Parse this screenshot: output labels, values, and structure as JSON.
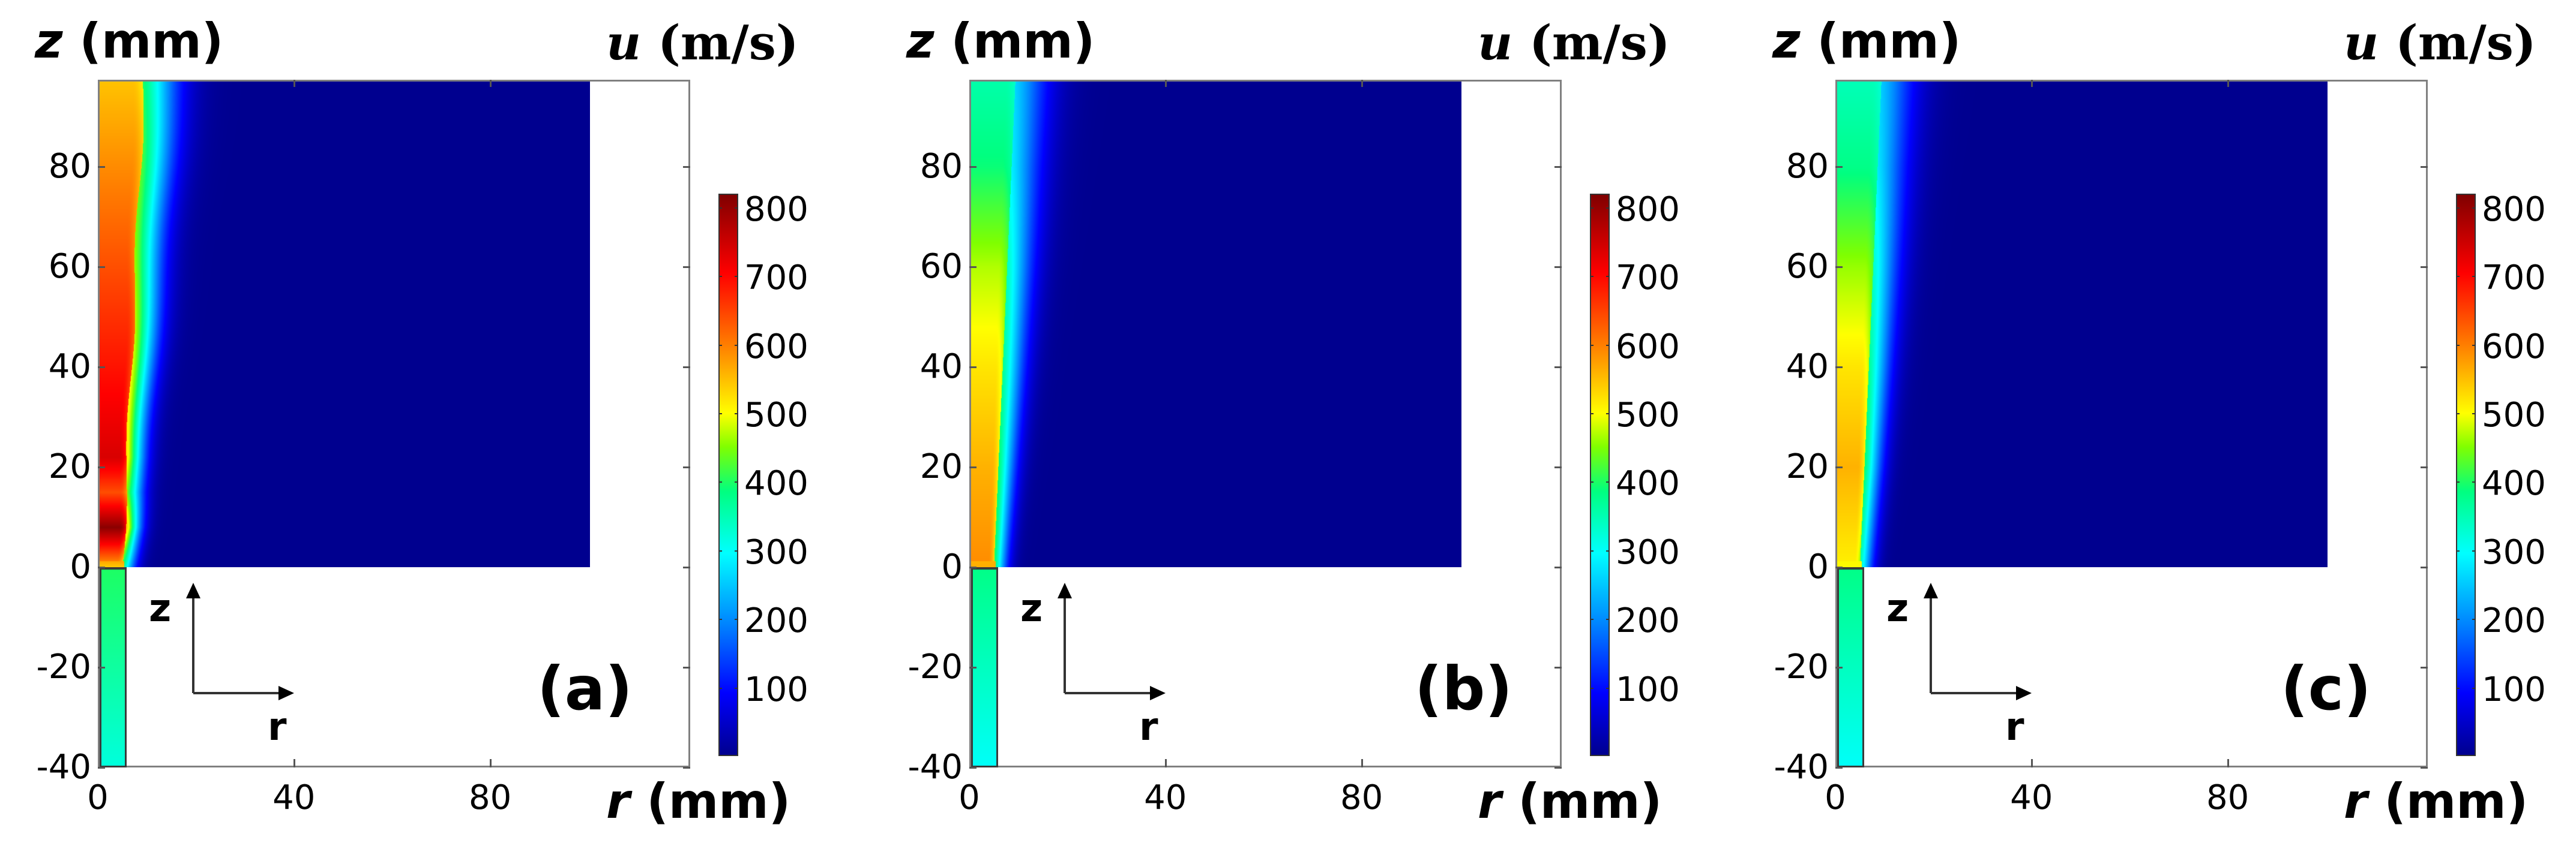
{
  "figure": {
    "panels": [
      {
        "id": "a",
        "tag": "(a)"
      },
      {
        "id": "b",
        "tag": "(b)"
      },
      {
        "id": "c",
        "tag": "(c)"
      }
    ],
    "labels": {
      "z_axis_var": "z",
      "z_axis_unit": "(mm)",
      "r_axis_var": "r",
      "r_axis_unit": "(mm)",
      "u_var": "u",
      "u_unit": "(m/s)",
      "coord_z": "z",
      "coord_r": "r"
    },
    "y_ticks": [
      "80",
      "60",
      "40",
      "20",
      "0",
      "-20",
      "-40"
    ],
    "x_ticks": [
      "0",
      "40",
      "80"
    ],
    "colorbar_ticks": [
      "800",
      "700",
      "600",
      "500",
      "400",
      "300",
      "200",
      "100"
    ]
  },
  "colors": {
    "background": "#ffffff",
    "ambient_flow": "#00008b",
    "axis_frame": "#808080",
    "colormap": "jet"
  },
  "chart_data": [
    {
      "type": "heatmap",
      "panel": "(a)",
      "title": "",
      "xlabel": "r (mm)",
      "ylabel": "z (mm)",
      "colorbar_label": "u (m/s)",
      "xlim": [
        0,
        120
      ],
      "ylim": [
        -40,
        100
      ],
      "x_ticks": [
        0,
        40,
        80
      ],
      "y_ticks": [
        -40,
        -20,
        0,
        20,
        40,
        60,
        80
      ],
      "color_range": [
        0,
        820
      ],
      "colorbar_ticks": [
        100,
        200,
        300,
        400,
        500,
        600,
        700,
        800
      ],
      "domain": {
        "r": [
          0,
          100
        ],
        "z": [
          0,
          100
        ]
      },
      "nozzle": {
        "r": [
          0,
          5
        ],
        "z": [
          -40,
          0
        ],
        "u": 380
      },
      "jet_core": [
        {
          "z": 0,
          "u_axis": 560
        },
        {
          "z": 8,
          "u_axis": 810
        },
        {
          "z": 15,
          "u_axis": 640
        },
        {
          "z": 22,
          "u_axis": 740
        },
        {
          "z": 40,
          "u_axis": 690
        },
        {
          "z": 60,
          "u_axis": 640
        },
        {
          "z": 80,
          "u_axis": 590
        },
        {
          "z": 100,
          "u_axis": 540
        }
      ],
      "ambient_u": 0
    },
    {
      "type": "heatmap",
      "panel": "(b)",
      "title": "",
      "xlabel": "r (mm)",
      "ylabel": "z (mm)",
      "colorbar_label": "u (m/s)",
      "xlim": [
        0,
        120
      ],
      "ylim": [
        -40,
        100
      ],
      "x_ticks": [
        0,
        40,
        80
      ],
      "y_ticks": [
        -40,
        -20,
        0,
        20,
        40,
        60,
        80
      ],
      "color_range": [
        0,
        820
      ],
      "colorbar_ticks": [
        100,
        200,
        300,
        400,
        500,
        600,
        700,
        800
      ],
      "domain": {
        "r": [
          0,
          100
        ],
        "z": [
          0,
          100
        ]
      },
      "nozzle": {
        "r": [
          0,
          5
        ],
        "z": [
          -40,
          0
        ],
        "u": 360
      },
      "jet_core": [
        {
          "z": 0,
          "u_axis": 590
        },
        {
          "z": 20,
          "u_axis": 560
        },
        {
          "z": 40,
          "u_axis": 520
        },
        {
          "z": 60,
          "u_axis": 470
        },
        {
          "z": 80,
          "u_axis": 390
        },
        {
          "z": 100,
          "u_axis": 350
        }
      ],
      "ambient_u": 0
    },
    {
      "type": "heatmap",
      "panel": "(c)",
      "title": "",
      "xlabel": "r (mm)",
      "ylabel": "z (mm)",
      "colorbar_label": "u (m/s)",
      "xlim": [
        0,
        120
      ],
      "ylim": [
        -40,
        100
      ],
      "x_ticks": [
        0,
        40,
        80
      ],
      "y_ticks": [
        -40,
        -20,
        0,
        20,
        40,
        60,
        80
      ],
      "color_range": [
        0,
        820
      ],
      "colorbar_ticks": [
        100,
        200,
        300,
        400,
        500,
        600,
        700,
        800
      ],
      "domain": {
        "r": [
          0,
          100
        ],
        "z": [
          0,
          100
        ]
      },
      "nozzle": {
        "r": [
          0,
          5
        ],
        "z": [
          -40,
          0
        ],
        "u": 360
      },
      "jet_core": [
        {
          "z": 0,
          "u_axis": 510
        },
        {
          "z": 20,
          "u_axis": 560
        },
        {
          "z": 40,
          "u_axis": 520
        },
        {
          "z": 60,
          "u_axis": 460
        },
        {
          "z": 80,
          "u_axis": 380
        },
        {
          "z": 100,
          "u_axis": 340
        }
      ],
      "ambient_u": 0
    }
  ]
}
